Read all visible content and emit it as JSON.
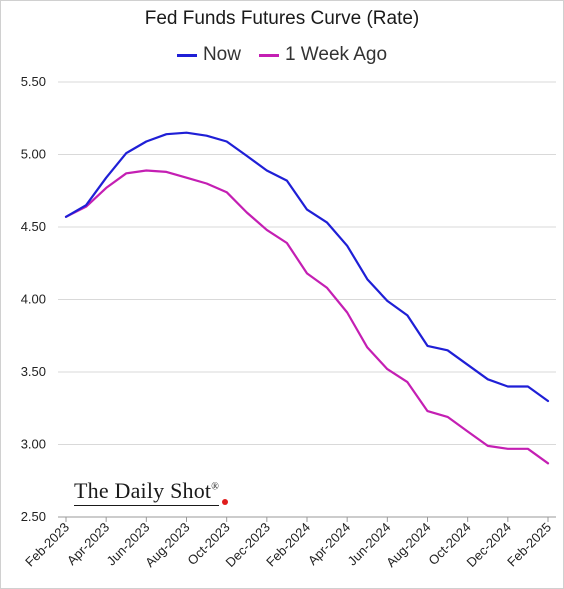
{
  "chart_data": {
    "type": "line",
    "title": "Fed Funds Futures Curve (Rate)",
    "xlabel": "",
    "ylabel": "",
    "ylim": [
      2.5,
      5.5
    ],
    "yticks": [
      "2.50",
      "3.00",
      "3.50",
      "4.00",
      "4.50",
      "5.00",
      "5.50"
    ],
    "xticks": [
      "Feb-2023",
      "Apr-2023",
      "Jun-2023",
      "Aug-2023",
      "Oct-2023",
      "Dec-2023",
      "Feb-2024",
      "Apr-2024",
      "Jun-2024",
      "Aug-2024",
      "Oct-2024",
      "Dec-2024",
      "Feb-2025"
    ],
    "x": [
      "Feb-2023",
      "Mar-2023",
      "Apr-2023",
      "May-2023",
      "Jun-2023",
      "Jul-2023",
      "Aug-2023",
      "Sep-2023",
      "Oct-2023",
      "Nov-2023",
      "Dec-2023",
      "Jan-2024",
      "Feb-2024",
      "Mar-2024",
      "Apr-2024",
      "May-2024",
      "Jun-2024",
      "Jul-2024",
      "Aug-2024",
      "Sep-2024",
      "Oct-2024",
      "Nov-2024",
      "Dec-2024",
      "Jan-2025",
      "Feb-2025"
    ],
    "grid": true,
    "legend_position": "top",
    "series": [
      {
        "name": "Now",
        "color": "#1f1fd6",
        "values": [
          4.57,
          4.65,
          4.84,
          5.01,
          5.09,
          5.14,
          5.15,
          5.13,
          5.09,
          4.99,
          4.89,
          4.82,
          4.62,
          4.53,
          4.37,
          4.14,
          3.99,
          3.89,
          3.68,
          3.65,
          3.55,
          3.45,
          3.4,
          3.4,
          3.3
        ]
      },
      {
        "name": "1 Week Ago",
        "color": "#c41fb3",
        "values": [
          4.57,
          4.64,
          4.77,
          4.87,
          4.89,
          4.88,
          4.84,
          4.8,
          4.74,
          4.6,
          4.48,
          4.39,
          4.18,
          4.08,
          3.91,
          3.67,
          3.52,
          3.43,
          3.23,
          3.19,
          3.09,
          2.99,
          2.97,
          2.97,
          2.87
        ]
      }
    ]
  },
  "brand": {
    "name": "The Daily Shot",
    "mark": "®"
  }
}
